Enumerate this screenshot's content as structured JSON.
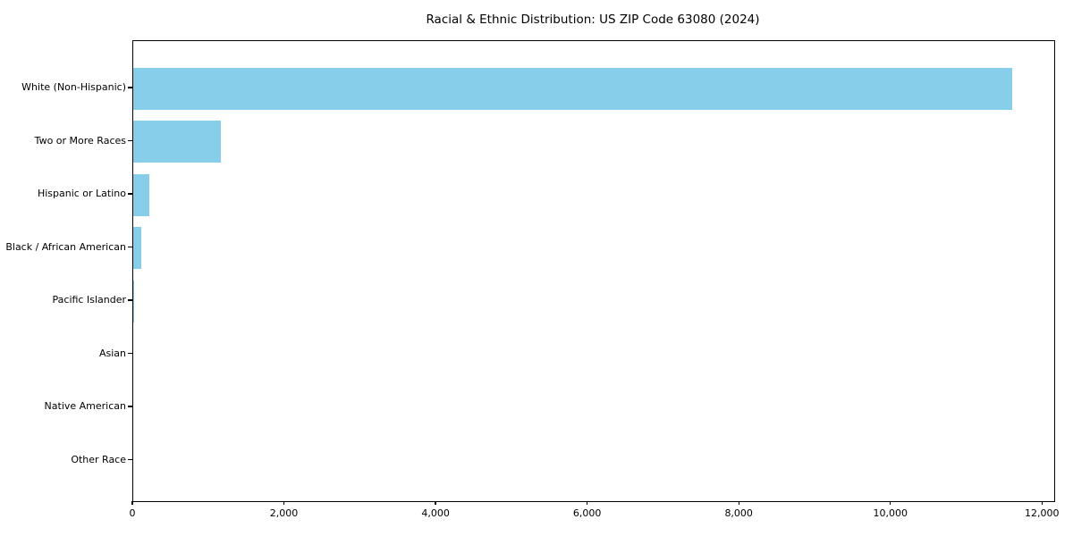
{
  "chart_data": {
    "type": "bar",
    "orientation": "horizontal",
    "title": "Racial & Ethnic Distribution: US ZIP Code 63080 (2024)",
    "categories": [
      "White (Non-Hispanic)",
      "Two or More Races",
      "Hispanic or Latino",
      "Black / African American",
      "Pacific Islander",
      "Asian",
      "Native American",
      "Other Race"
    ],
    "values": [
      11600,
      1160,
      215,
      105,
      15,
      0,
      0,
      0
    ],
    "xlabel": "",
    "ylabel": "",
    "xlim": [
      0,
      12150
    ],
    "x_ticks": [
      0,
      2000,
      4000,
      6000,
      8000,
      10000,
      12000
    ],
    "x_tick_labels": [
      "0",
      "2,000",
      "4,000",
      "6,000",
      "8,000",
      "10,000",
      "12,000"
    ],
    "bar_color": "#87CEEB",
    "frame_color": "#000000",
    "grid": false,
    "legend": "none"
  }
}
